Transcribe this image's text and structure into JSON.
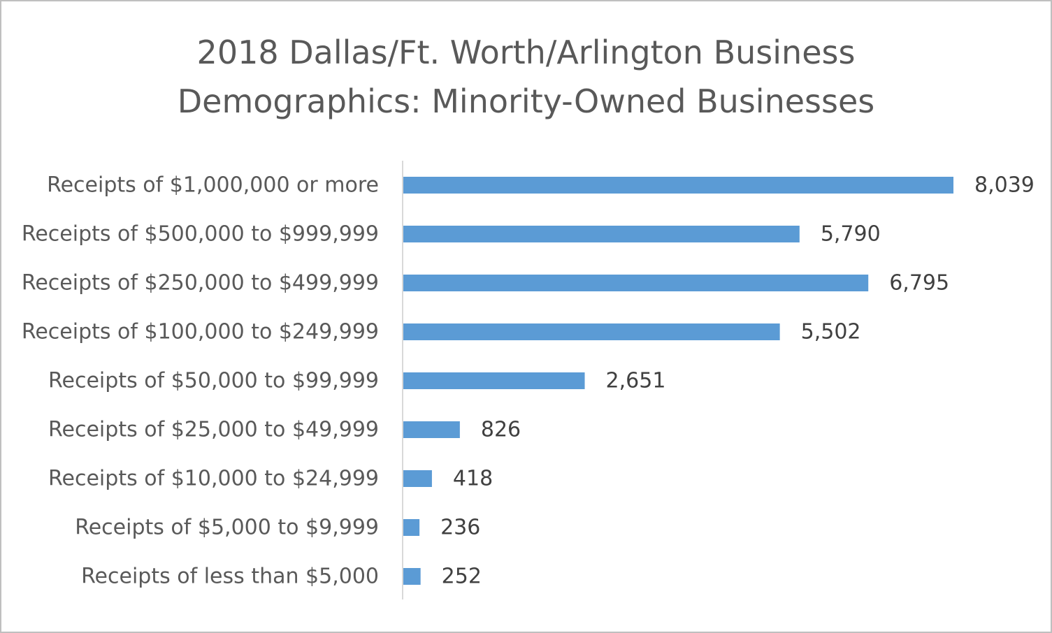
{
  "chart_data": {
    "type": "bar",
    "orientation": "horizontal",
    "title_lines": [
      "2018 Dallas/Ft. Worth/Arlington Business",
      "Demographics: Minority-Owned Businesses"
    ],
    "categories": [
      "Receipts of $1,000,000 or more",
      "Receipts of $500,000 to $999,999",
      "Receipts of $250,000 to $499,999",
      "Receipts of $100,000 to $249,999",
      "Receipts of $50,000 to $99,999",
      "Receipts of $25,000 to $49,999",
      "Receipts of $10,000 to $24,999",
      "Receipts of $5,000 to $9,999",
      "Receipts of less than $5,000"
    ],
    "values": [
      8039,
      5790,
      6795,
      5502,
      2651,
      826,
      418,
      236,
      252
    ],
    "data_labels": [
      "8,039",
      "5,790",
      "6,795",
      "5,502",
      "2,651",
      "826",
      "418",
      "236",
      "252"
    ],
    "xlim": [
      0,
      8039
    ],
    "grid": false,
    "legend": "none",
    "bar_color": "#5b9bd5",
    "axis_color": "#d9d9d9"
  }
}
